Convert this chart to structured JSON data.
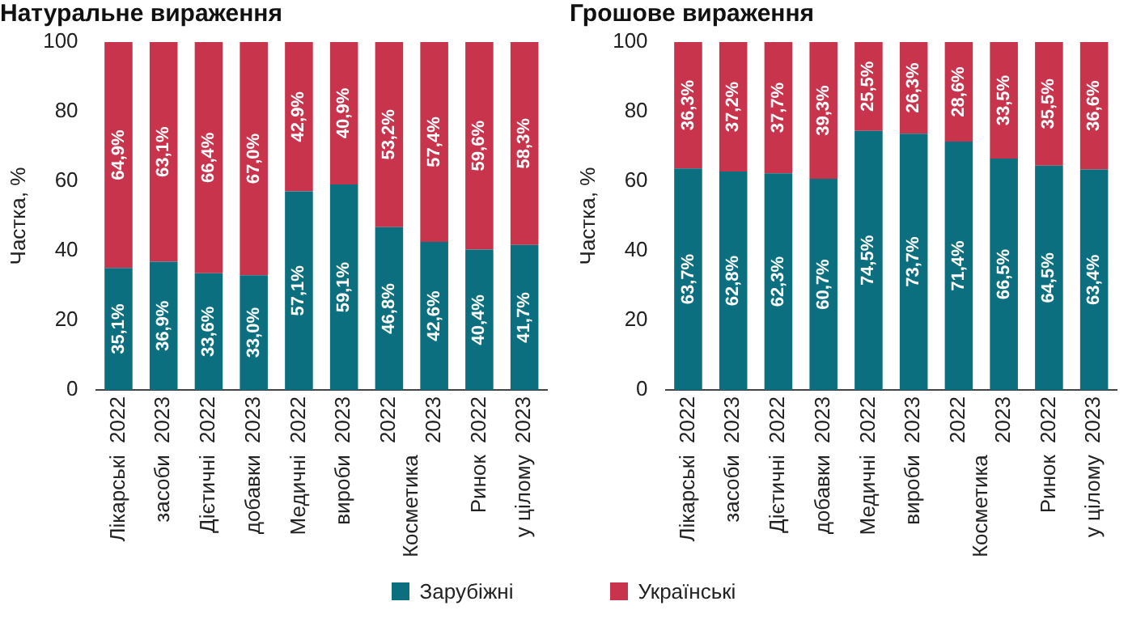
{
  "chart_data": [
    {
      "type": "bar",
      "title": "Натуральне вираження",
      "ylabel": "Частка, %",
      "stacked": true,
      "categories": [
        "2022",
        "2023",
        "2022",
        "2023",
        "2022",
        "2023",
        "2022",
        "2023",
        "2022",
        "2023"
      ],
      "annotations": [
        "Лікарські засоби",
        "Дієтичні добавки",
        "Медичні вироби",
        "Косметика",
        "Ринок у цілому"
      ],
      "ylim": [
        0,
        100
      ],
      "yticks": [
        0,
        20,
        40,
        60,
        80,
        100
      ],
      "grid": false,
      "series": [
        {
          "color": "#0b6f80",
          "values": [
            35.1,
            36.9,
            33.6,
            33.0,
            57.1,
            59.1,
            46.8,
            42.6,
            40.4,
            41.7
          ],
          "value_labels": [
            "35,1%",
            "36,9%",
            "33,6%",
            "33,0%",
            "57,1%",
            "59,1%",
            "46,8%",
            "42,6%",
            "40,4%",
            "41,7%"
          ]
        },
        {
          "color": "#c8344c",
          "values": [
            64.9,
            63.1,
            66.4,
            67.0,
            42.9,
            40.9,
            53.2,
            57.4,
            59.6,
            58.3
          ],
          "value_labels": [
            "64,9%",
            "63,1%",
            "66,4%",
            "67,0%",
            "42,9%",
            "40,9%",
            "53,2%",
            "57,4%",
            "59,6%",
            "58,3%"
          ]
        }
      ]
    },
    {
      "type": "bar",
      "title": "Грошове вираження",
      "ylabel": "Частка, %",
      "stacked": true,
      "categories": [
        "2022",
        "2023",
        "2022",
        "2023",
        "2022",
        "2023",
        "2022",
        "2023",
        "2022",
        "2023"
      ],
      "annotations": [
        "Лікарські засоби",
        "Дієтичні добавки",
        "Медичні вироби",
        "Косметика",
        "Ринок у цілому"
      ],
      "ylim": [
        0,
        100
      ],
      "yticks": [
        0,
        20,
        40,
        60,
        80,
        100
      ],
      "grid": false,
      "legend": "bottom",
      "series": [
        {
          "name": "Зарубіжні",
          "color": "#0b6f80",
          "values": [
            63.7,
            62.8,
            62.3,
            60.7,
            74.5,
            73.7,
            71.4,
            66.5,
            64.5,
            63.4
          ],
          "value_labels": [
            "63,7%",
            "62,8%",
            "62,3%",
            "60,7%",
            "74,5%",
            "73,7%",
            "71,4%",
            "66,5%",
            "64,5%",
            "63,4%"
          ]
        },
        {
          "name": "Українські",
          "color": "#c8344c",
          "values": [
            36.3,
            37.2,
            37.7,
            39.3,
            25.5,
            26.3,
            28.6,
            33.5,
            35.5,
            36.6
          ],
          "value_labels": [
            "36,3%",
            "37,2%",
            "37,7%",
            "39,3%",
            "25,5%",
            "26,3%",
            "28,6%",
            "33,5%",
            "35,5%",
            "36,6%"
          ]
        }
      ]
    }
  ]
}
